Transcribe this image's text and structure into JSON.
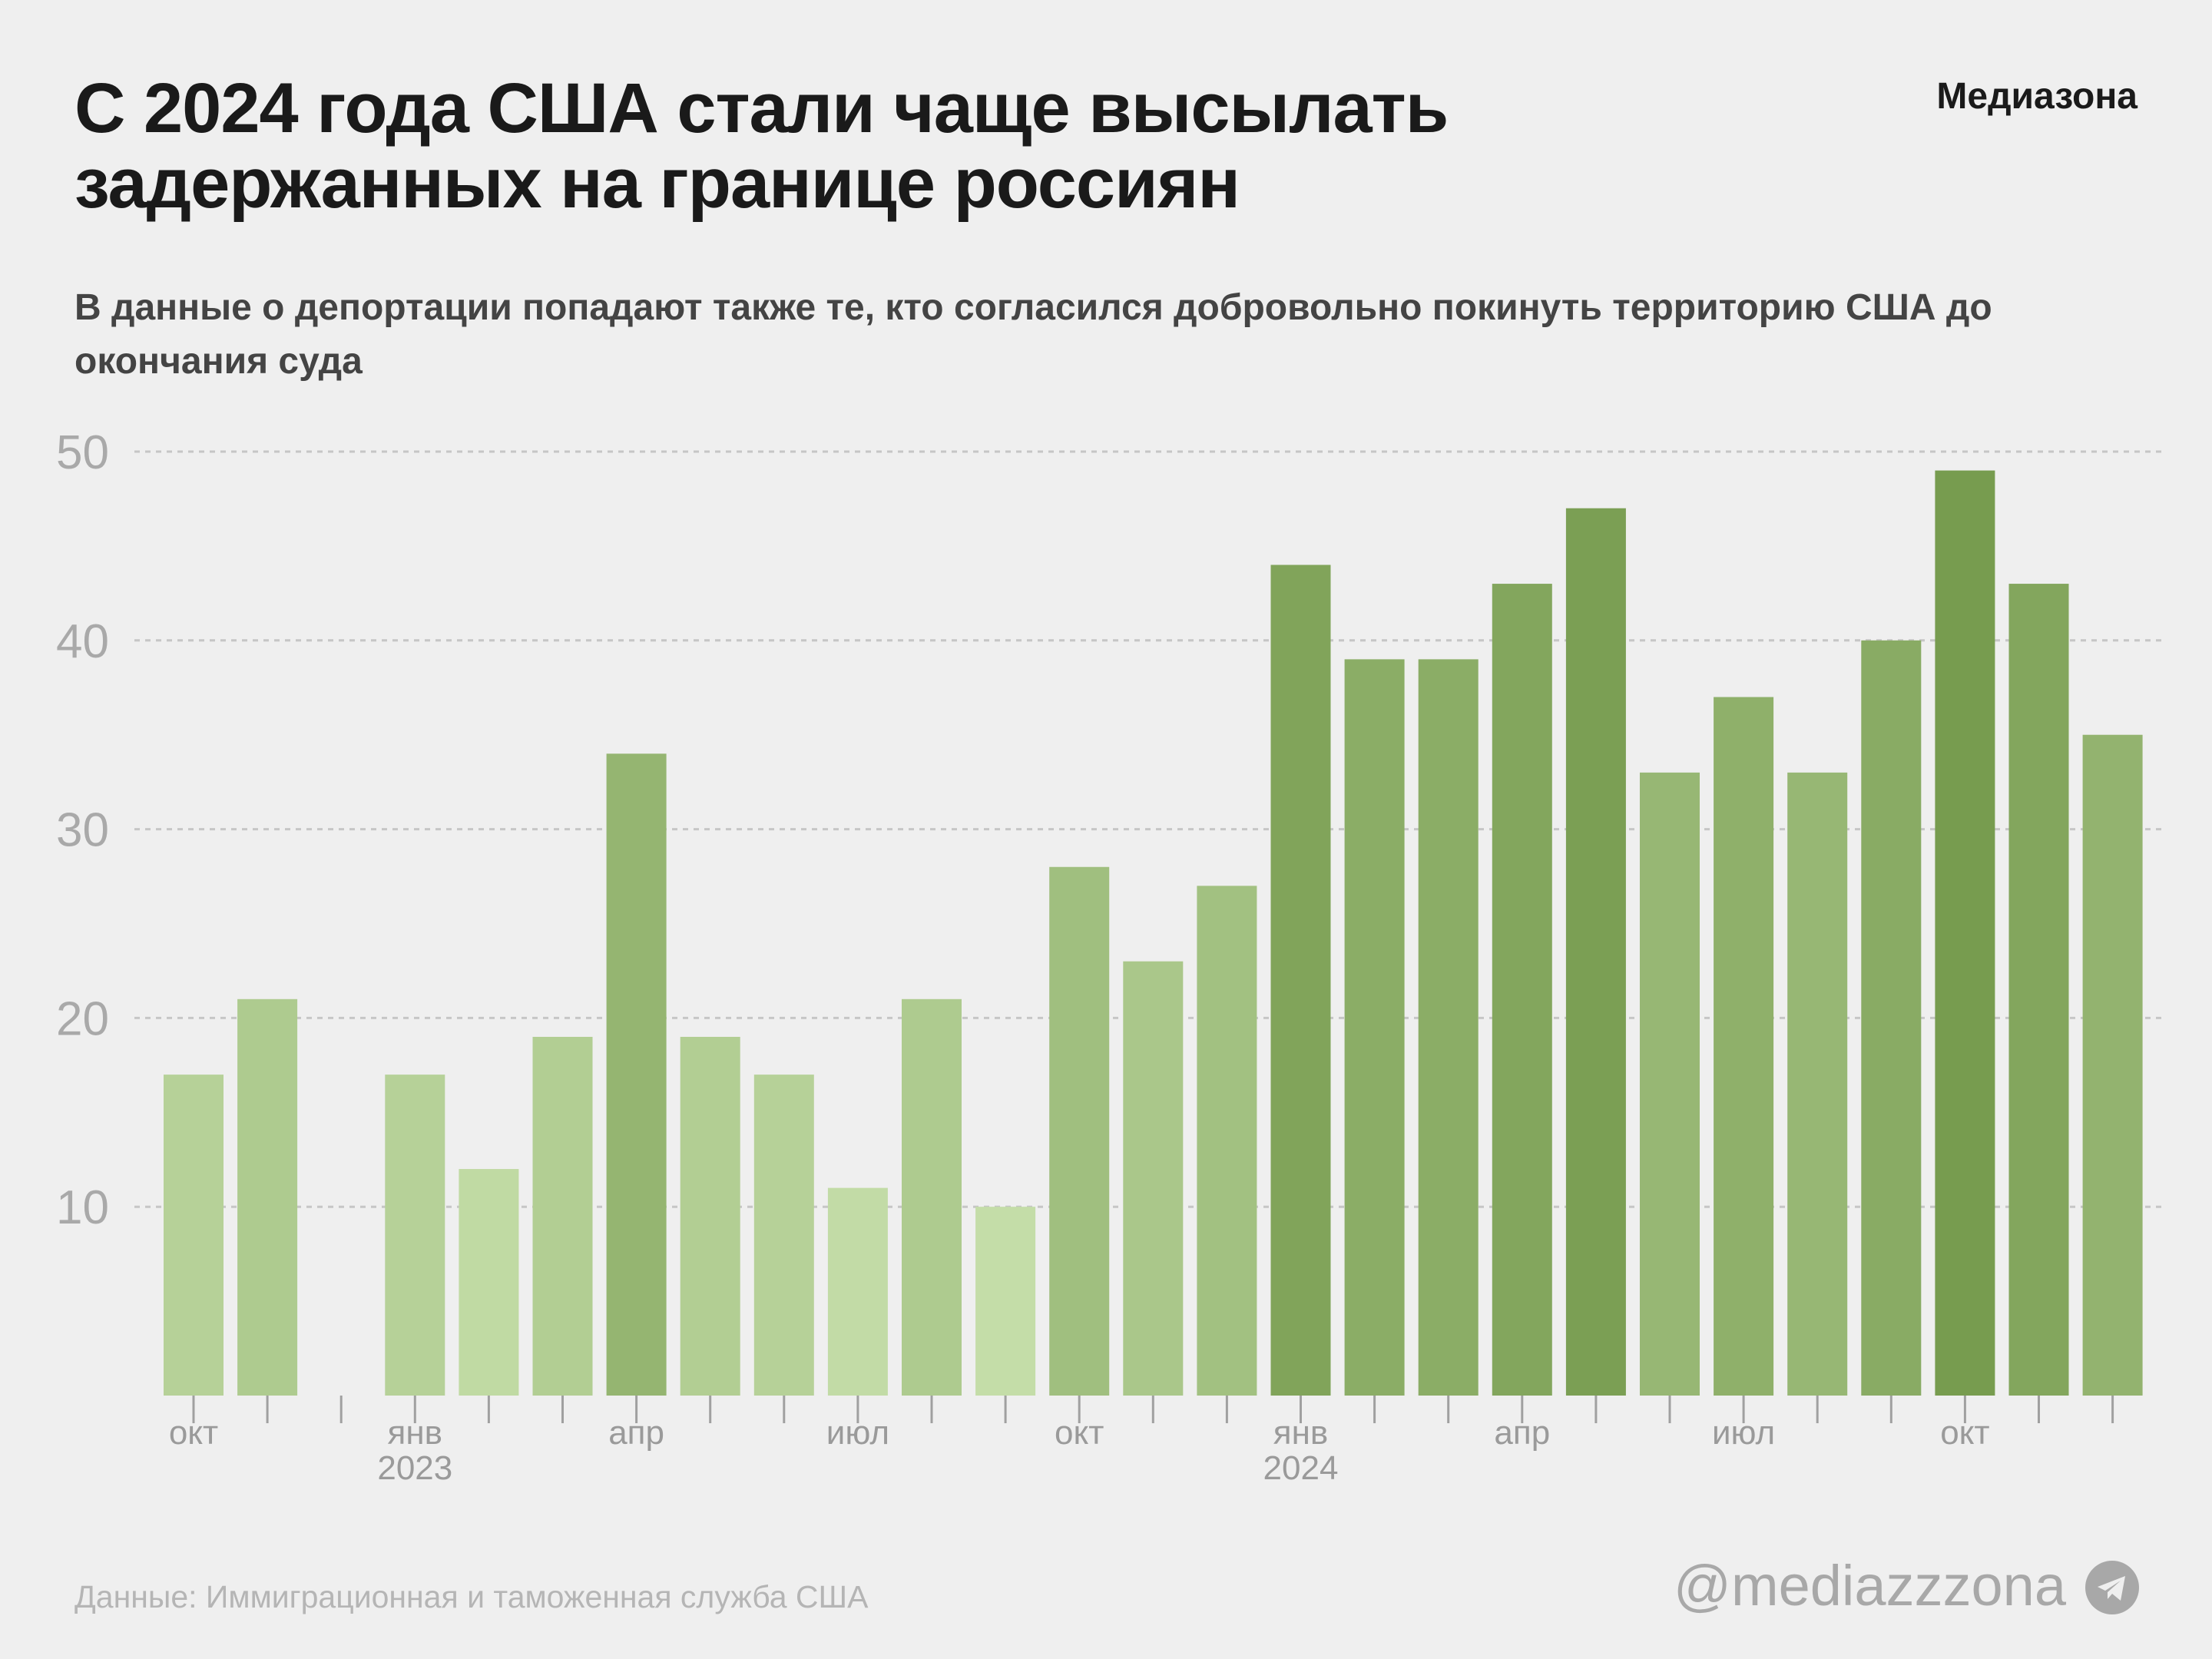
{
  "header": {
    "title": "С 2024 года США стали чаще высылать задержанных на границе россиян",
    "subtitle": "В данные о депортации попадают также те, кто согласился добровольно покинуть территорию США до окончания суда",
    "logo": "Медиазона"
  },
  "footer": {
    "source": "Данные: Иммиграционная и таможенная служба США",
    "handle": "@mediazzzona",
    "handle_icon": "telegram-icon"
  },
  "chart_data": {
    "type": "bar",
    "title": "С 2024 года США стали чаще высылать задержанных на границе россиян",
    "xlabel": "",
    "ylabel": "",
    "ylim": [
      0,
      50
    ],
    "yticks": [
      10,
      20,
      30,
      40,
      50
    ],
    "grid": true,
    "categories": [
      "2022-10",
      "2022-11",
      "2022-12",
      "2023-01",
      "2023-02",
      "2023-03",
      "2023-04",
      "2023-05",
      "2023-06",
      "2023-07",
      "2023-08",
      "2023-09",
      "2023-10",
      "2023-11",
      "2023-12",
      "2024-01",
      "2024-02",
      "2024-03",
      "2024-04",
      "2024-05",
      "2024-06",
      "2024-07",
      "2024-08",
      "2024-09",
      "2024-10",
      "2024-11",
      "2024-12"
    ],
    "values": [
      17,
      21,
      null,
      17,
      12,
      19,
      34,
      19,
      17,
      11,
      21,
      10,
      28,
      23,
      27,
      44,
      39,
      39,
      43,
      47,
      33,
      37,
      33,
      40,
      49,
      43,
      35
    ],
    "tick_labels": [
      {
        "index": 0,
        "label": "окт"
      },
      {
        "index": 3,
        "label": "янв",
        "year": "2023"
      },
      {
        "index": 6,
        "label": "апр"
      },
      {
        "index": 9,
        "label": "июл"
      },
      {
        "index": 12,
        "label": "окт"
      },
      {
        "index": 15,
        "label": "янв",
        "year": "2024"
      },
      {
        "index": 18,
        "label": "апр"
      },
      {
        "index": 21,
        "label": "июл"
      },
      {
        "index": 24,
        "label": "окт"
      }
    ],
    "color_scale": {
      "low": "#c4dda8",
      "high": "#779c4f",
      "domain": [
        10,
        49
      ]
    }
  }
}
